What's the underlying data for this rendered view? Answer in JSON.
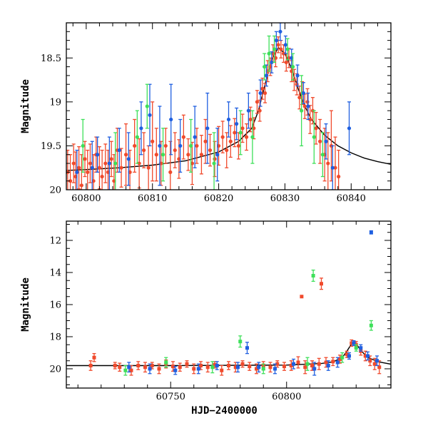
{
  "chart_data": [
    {
      "type": "scatter",
      "title": "",
      "xlabel": "",
      "ylabel": "Magnitude",
      "xlim": [
        60797,
        60846
      ],
      "ylim": [
        20,
        18.1
      ],
      "y_inverted": true,
      "xticks": [
        60800,
        60810,
        60820,
        60830,
        60840
      ],
      "yticks": [
        18.5,
        19,
        19.5,
        20
      ],
      "ytick_labels": [
        "18.5",
        "19",
        "19.5",
        "20"
      ],
      "grid": false,
      "legend": "none",
      "series_colors": {
        "blue": "#1f5fe0",
        "green": "#3ee05a",
        "red": "#f04a2c",
        "model": "#000000"
      },
      "model_curve": {
        "name": "",
        "x": [
          60797,
          60800,
          60805,
          60810,
          60815,
          60820,
          60823,
          60825,
          60826,
          60827,
          60828,
          60829,
          60830,
          60831,
          60832,
          60833,
          60834,
          60836,
          60838,
          60840,
          60842,
          60844,
          60846
        ],
        "y": [
          19.78,
          19.77,
          19.75,
          19.72,
          19.67,
          19.57,
          19.45,
          19.3,
          19.1,
          18.8,
          18.52,
          18.38,
          18.45,
          18.62,
          18.85,
          19.05,
          19.2,
          19.38,
          19.5,
          19.58,
          19.64,
          19.68,
          19.71
        ]
      },
      "series": [
        {
          "color": "red",
          "x": [
            60797.2,
            60797.6,
            60798.1,
            60798.4,
            60798.9,
            60799.3,
            60799.8,
            60800.2,
            60800.6,
            60801.1,
            60801.5,
            60802.0,
            60802.4,
            60802.9,
            60803.3,
            60803.8,
            60804.2,
            60804.7,
            60805.3,
            60806.0,
            60806.6,
            60807.3,
            60808.0,
            60808.7,
            60809.4,
            60810.0,
            60810.6,
            60811.3,
            60812.0,
            60812.7,
            60813.4,
            60814.0,
            60814.7,
            60815.4,
            60816.0,
            60816.7,
            60817.4,
            60818.0,
            60818.7,
            60819.4,
            60820.0,
            60820.6,
            60821.2,
            60821.8,
            60822.4,
            60823.0,
            60823.6,
            60824.2,
            60824.8,
            60825.3,
            60825.8,
            60826.2,
            60826.6,
            60827.0,
            60827.4,
            60827.8,
            60828.2,
            60828.6,
            60829.0,
            60829.4,
            60829.8,
            60830.2,
            60830.6,
            60831.0,
            60831.4,
            60831.8,
            60832.2,
            60832.6,
            60833.0,
            60833.4,
            60833.8,
            60834.2,
            60834.7,
            60835.3,
            60836.0,
            60836.5,
            60837.0,
            60837.6,
            60838.1
          ],
          "y": [
            19.8,
            19.9,
            19.7,
            19.85,
            19.75,
            19.95,
            19.65,
            19.8,
            19.7,
            19.9,
            19.6,
            19.75,
            19.85,
            19.7,
            19.8,
            19.65,
            19.9,
            19.55,
            19.75,
            19.6,
            19.8,
            19.5,
            19.7,
            19.55,
            19.75,
            19.45,
            19.6,
            19.7,
            19.5,
            19.8,
            19.55,
            19.65,
            19.4,
            19.6,
            19.7,
            19.5,
            19.6,
            19.45,
            19.55,
            19.65,
            19.5,
            19.4,
            19.55,
            19.45,
            19.35,
            19.5,
            19.3,
            19.4,
            19.2,
            19.3,
            19.0,
            19.1,
            18.85,
            18.9,
            18.65,
            18.6,
            18.45,
            18.5,
            18.35,
            18.4,
            18.45,
            18.55,
            18.5,
            18.65,
            18.75,
            18.8,
            18.95,
            18.9,
            19.05,
            19.0,
            19.2,
            19.1,
            19.3,
            19.45,
            19.6,
            19.7,
            19.5,
            19.75,
            19.85
          ],
          "yerr": [
            0.25,
            0.3,
            0.22,
            0.28,
            0.24,
            0.35,
            0.2,
            0.25,
            0.22,
            0.3,
            0.2,
            0.24,
            0.3,
            0.22,
            0.25,
            0.2,
            0.3,
            0.25,
            0.22,
            0.35,
            0.25,
            0.3,
            0.28,
            0.2,
            0.25,
            0.45,
            0.3,
            0.25,
            0.2,
            0.35,
            0.2,
            0.22,
            0.25,
            0.18,
            0.24,
            0.2,
            0.22,
            0.25,
            0.18,
            0.2,
            0.22,
            0.18,
            0.2,
            0.18,
            0.16,
            0.15,
            0.16,
            0.15,
            0.14,
            0.12,
            0.13,
            0.12,
            0.12,
            0.11,
            0.12,
            0.1,
            0.1,
            0.1,
            0.09,
            0.1,
            0.1,
            0.1,
            0.11,
            0.12,
            0.12,
            0.12,
            0.13,
            0.13,
            0.14,
            0.15,
            0.16,
            0.15,
            0.18,
            0.25,
            0.3,
            0.35,
            0.4,
            0.35,
            0.3
          ]
        },
        {
          "color": "blue",
          "x": [
            60798.6,
            60800.9,
            60801.7,
            60803.5,
            60805.0,
            60806.4,
            60808.3,
            60809.6,
            60811.1,
            60812.8,
            60814.2,
            60816.4,
            60818.3,
            60819.8,
            60821.5,
            60822.7,
            60824.5,
            60826.3,
            60827.2,
            60828.0,
            60828.7,
            60829.3,
            60830.1,
            60831.0,
            60831.9,
            60832.8,
            60833.5,
            60836.2,
            60837.2,
            60839.7
          ],
          "y": [
            19.8,
            19.75,
            19.6,
            19.7,
            19.55,
            19.65,
            19.3,
            19.15,
            19.5,
            19.2,
            19.5,
            19.4,
            19.3,
            19.6,
            19.2,
            19.25,
            19.1,
            18.9,
            18.7,
            18.55,
            18.3,
            18.2,
            18.35,
            18.5,
            18.7,
            18.9,
            19.05,
            19.45,
            19.75,
            19.3
          ],
          "yerr": [
            0.25,
            0.3,
            0.2,
            0.3,
            0.25,
            0.3,
            0.3,
            0.35,
            0.45,
            0.4,
            0.3,
            0.35,
            0.4,
            0.3,
            0.2,
            0.18,
            0.2,
            0.15,
            0.12,
            0.12,
            0.1,
            0.1,
            0.1,
            0.1,
            0.12,
            0.12,
            0.15,
            0.2,
            0.25,
            0.3
          ]
        },
        {
          "color": "green",
          "x": [
            60799.5,
            60804.4,
            60807.7,
            60809.2,
            60811.6,
            60815.8,
            60819.3,
            60823.3,
            60825.1,
            60826.9,
            60827.6,
            60828.4,
            60830.4,
            60831.2,
            60832.5,
            60834.4,
            60835.7
          ],
          "y": [
            19.5,
            19.7,
            19.4,
            19.05,
            19.6,
            19.5,
            19.7,
            19.35,
            19.4,
            18.6,
            18.45,
            18.4,
            18.4,
            18.6,
            19.1,
            19.4,
            19.6
          ],
          "yerr": [
            0.3,
            0.35,
            0.3,
            0.25,
            0.3,
            0.3,
            0.35,
            0.25,
            0.3,
            0.15,
            0.2,
            0.15,
            0.12,
            0.15,
            0.4,
            0.3,
            0.25
          ]
        }
      ]
    },
    {
      "type": "scatter",
      "title": "",
      "xlabel": "HJD−2400000",
      "ylabel": "Magnitude",
      "xlim": [
        60705,
        60845
      ],
      "ylim": [
        21.2,
        10.8
      ],
      "y_inverted": true,
      "xticks": [
        60750,
        60800
      ],
      "yticks": [
        12,
        14,
        16,
        18,
        20
      ],
      "ytick_labels": [
        "12",
        "14",
        "16",
        "18",
        "20"
      ],
      "grid": false,
      "legend": "none",
      "series_colors": {
        "blue": "#1f5fe0",
        "green": "#3ee05a",
        "red": "#f04a2c",
        "model": "#000000"
      },
      "model_curve": {
        "name": "",
        "x": [
          60705,
          60750,
          60800,
          60815,
          60820,
          60824,
          60826,
          60828,
          60830,
          60832,
          60835,
          60840,
          60845
        ],
        "y": [
          19.8,
          19.8,
          19.77,
          19.67,
          19.57,
          19.3,
          18.9,
          18.45,
          18.45,
          18.85,
          19.3,
          19.58,
          19.71
        ]
      },
      "series": [
        {
          "color": "red",
          "x": [
            60715.5,
            60717.0,
            60726.0,
            60728.0,
            60733.0,
            60736.0,
            60739.0,
            60742.0,
            60745.0,
            60748.0,
            60751.0,
            60754.0,
            60757.0,
            60760.0,
            60763.0,
            60766.0,
            60769.0,
            60772.0,
            60775.0,
            60778.0,
            60781.0,
            60784.0,
            60787.0,
            60790.0,
            60793.0,
            60796.0,
            60799.0,
            60802.0,
            60805.0,
            60808.0,
            60811.0,
            60814.0,
            60817.0,
            60820.0,
            60823.0,
            60826.0,
            60828.0,
            60830.0,
            60832.0,
            60834.0,
            60836.0,
            60838.0,
            60840.0,
            60806.5,
            60815.0
          ],
          "y": [
            19.8,
            19.3,
            19.8,
            19.9,
            20.1,
            19.8,
            19.9,
            19.8,
            20.0,
            19.7,
            19.85,
            19.9,
            19.7,
            20.0,
            19.8,
            19.9,
            19.75,
            20.1,
            19.8,
            19.9,
            19.7,
            19.85,
            20.0,
            19.8,
            19.9,
            19.7,
            19.85,
            19.8,
            19.6,
            19.9,
            19.8,
            19.7,
            19.6,
            19.55,
            19.4,
            19.1,
            18.4,
            18.5,
            18.9,
            19.2,
            19.5,
            19.7,
            19.9,
            15.5,
            14.7
          ],
          "yerr": [
            0.3,
            0.25,
            0.2,
            0.25,
            0.3,
            0.25,
            0.3,
            0.2,
            0.3,
            0.25,
            0.3,
            0.25,
            0.2,
            0.3,
            0.25,
            0.3,
            0.2,
            0.3,
            0.25,
            0.3,
            0.2,
            0.25,
            0.3,
            0.25,
            0.3,
            0.2,
            0.25,
            0.3,
            0.35,
            0.4,
            0.3,
            0.35,
            0.3,
            0.25,
            0.25,
            0.2,
            0.2,
            0.2,
            0.25,
            0.3,
            0.3,
            0.35,
            0.4,
            0.0,
            0.35
          ]
        },
        {
          "color": "blue",
          "x": [
            60732.0,
            60741.0,
            60752.0,
            60762.0,
            60770.0,
            60779.0,
            60783.0,
            60788.0,
            60795.0,
            60803.0,
            60812.0,
            60818.0,
            60822.0,
            60827.0,
            60829.0,
            60832.0,
            60835.0,
            60839.0,
            60836.5
          ],
          "y": [
            19.9,
            20.0,
            20.1,
            20.0,
            19.8,
            19.9,
            18.7,
            19.9,
            20.0,
            19.7,
            20.0,
            19.8,
            19.6,
            19.2,
            18.4,
            18.7,
            19.2,
            19.5,
            11.5
          ],
          "yerr": [
            0.3,
            0.3,
            0.25,
            0.3,
            0.25,
            0.3,
            0.35,
            0.3,
            0.3,
            0.3,
            0.4,
            0.3,
            0.3,
            0.2,
            0.15,
            0.2,
            0.25,
            0.3,
            0.1
          ]
        },
        {
          "color": "green",
          "x": [
            60730.5,
            60748.0,
            60768.0,
            60780.0,
            60790.0,
            60809.0,
            60824.0,
            60830.0,
            60836.5,
            60811.5
          ],
          "y": [
            20.1,
            19.6,
            19.9,
            18.3,
            20.0,
            19.7,
            19.3,
            18.7,
            17.3,
            14.2
          ],
          "yerr": [
            0.3,
            0.3,
            0.35,
            0.35,
            0.3,
            0.4,
            0.3,
            0.2,
            0.3,
            0.35
          ]
        }
      ]
    }
  ]
}
